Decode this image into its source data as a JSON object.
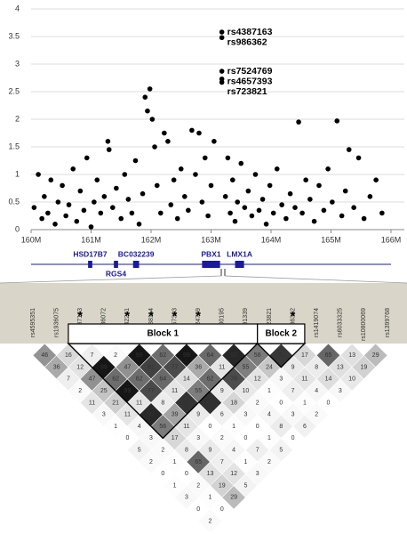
{
  "chart_data": [
    {
      "type": "scatter",
      "x": [
        160.05,
        160.12,
        160.18,
        160.22,
        160.28,
        160.33,
        160.4,
        160.45,
        160.52,
        160.58,
        160.63,
        160.7,
        160.76,
        160.82,
        160.88,
        160.93,
        161.0,
        161.05,
        161.1,
        161.16,
        161.22,
        161.28,
        161.3,
        161.36,
        161.42,
        161.5,
        161.56,
        161.62,
        161.68,
        161.74,
        161.8,
        161.86,
        161.9,
        161.94,
        161.98,
        162.02,
        162.06,
        162.1,
        162.16,
        162.22,
        162.28,
        162.33,
        162.38,
        162.44,
        162.5,
        162.56,
        162.62,
        162.68,
        162.74,
        162.8,
        162.85,
        162.9,
        162.95,
        163.0,
        163.05,
        163.18,
        163.18,
        163.18,
        163.18,
        163.18,
        163.24,
        163.28,
        163.32,
        163.36,
        163.4,
        163.44,
        163.5,
        163.56,
        163.62,
        163.68,
        163.74,
        163.8,
        163.86,
        163.92,
        163.98,
        164.04,
        164.1,
        164.18,
        164.25,
        164.32,
        164.4,
        164.46,
        164.52,
        164.58,
        164.65,
        164.72,
        164.8,
        164.88,
        164.95,
        165.02,
        165.1,
        165.18,
        165.24,
        165.3,
        165.38,
        165.46,
        165.55,
        165.65,
        165.75,
        165.85
      ],
      "y": [
        0.4,
        1.0,
        0.2,
        0.6,
        0.3,
        0.9,
        0.1,
        0.5,
        0.8,
        0.25,
        0.45,
        1.1,
        0.15,
        0.7,
        0.35,
        1.3,
        0.05,
        0.5,
        0.9,
        0.3,
        0.6,
        1.6,
        1.45,
        0.4,
        0.75,
        0.2,
        1.0,
        0.55,
        0.3,
        1.25,
        0.1,
        0.65,
        2.4,
        2.15,
        2.55,
        2.0,
        1.5,
        0.8,
        0.3,
        1.75,
        1.6,
        0.45,
        0.9,
        0.2,
        1.1,
        0.6,
        0.35,
        1.8,
        1.0,
        1.75,
        0.5,
        1.3,
        0.25,
        0.8,
        1.6,
        3.58,
        3.48,
        2.87,
        2.73,
        2.67,
        0.6,
        1.3,
        0.3,
        0.9,
        0.15,
        0.5,
        1.2,
        0.4,
        0.7,
        0.25,
        1.0,
        0.35,
        0.55,
        0.1,
        0.8,
        0.3,
        1.1,
        0.45,
        0.2,
        0.65,
        0.4,
        1.95,
        0.3,
        0.9,
        0.55,
        0.15,
        0.8,
        0.35,
        1.1,
        0.5,
        1.97,
        0.25,
        0.7,
        1.45,
        0.4,
        1.3,
        0.2,
        0.6,
        0.9,
        0.3
      ],
      "xlim": [
        160,
        166
      ],
      "ylim": [
        0,
        4
      ],
      "xticks": [
        {
          "value": 160,
          "label": "160M"
        },
        {
          "value": 161,
          "label": "161M"
        },
        {
          "value": 162,
          "label": "162M"
        },
        {
          "value": 163,
          "label": "163M"
        },
        {
          "value": 164,
          "label": "164M"
        },
        {
          "value": 165,
          "label": "165M"
        },
        {
          "value": 166,
          "label": "166M"
        }
      ],
      "yticks": [
        0,
        0.5,
        1,
        1.5,
        2,
        2.5,
        3,
        3.5,
        4
      ],
      "grid": true,
      "color": "#000000",
      "annotations": [
        {
          "text": "rs4387163",
          "x": 163.18,
          "y": 3.58
        },
        {
          "text": "rs986362",
          "x": 163.18,
          "y": 3.48
        },
        {
          "text": "rs7524769",
          "x": 163.18,
          "y": 2.87
        },
        {
          "text": "rs4657393",
          "x": 163.18,
          "y": 2.73
        },
        {
          "text": "rs723821",
          "x": 163.18,
          "y": 2.67
        }
      ]
    },
    {
      "type": "gene_track",
      "xlim": [
        160,
        166
      ],
      "color": "#1a1aa0",
      "genes": [
        {
          "name": "HSD17B7",
          "start": 160.95,
          "end": 161.02
        },
        {
          "name": "RGS4",
          "start": 161.38,
          "end": 161.45
        },
        {
          "name": "BC032239",
          "start": 161.7,
          "end": 161.8
        },
        {
          "name": "PBX1",
          "start": 162.85,
          "end": 163.15
        },
        {
          "name": "LMX1A",
          "start": 163.4,
          "end": 163.55
        }
      ]
    },
    {
      "type": "ld_heatmap",
      "snps": [
        "rs4595351",
        "rs1936075",
        "rs4387163",
        "rs1936072",
        "rs7542261",
        "rs11588114",
        "rs4657393",
        "rs7524769",
        "rs11800195",
        "rs1891339",
        "rs723821",
        "rs986362",
        "rs1419074",
        "rs6033325",
        "rs10800069",
        "rs1399768"
      ],
      "snp_marks": [
        null,
        null,
        "*",
        null,
        "*",
        "*",
        "*",
        "*",
        null,
        null,
        null,
        "*",
        null,
        null,
        null,
        null
      ],
      "values": [
        [
          46,
          36,
          7,
          2,
          11,
          3,
          1,
          0,
          5,
          2,
          0,
          1,
          3,
          0,
          2
        ],
        [
          16,
          12,
          47,
          25,
          21,
          11,
          4,
          3,
          2,
          1,
          0,
          2,
          1,
          0
        ],
        [
          7,
          99,
          62,
          99,
          11,
          92,
          56,
          17,
          8,
          65,
          13,
          19,
          29
        ],
        [
          2,
          47,
          62,
          77,
          8,
          39,
          11,
          3,
          9,
          7,
          12,
          5
        ],
        [
          99,
          81,
          64,
          11,
          87,
          9,
          0,
          2,
          4,
          1,
          3
        ],
        [
          62,
          77,
          14,
          55,
          88,
          6,
          1,
          0,
          7,
          2
        ],
        [
          99,
          36,
          62,
          9,
          18,
          3,
          0,
          1,
          5
        ],
        [
          64,
          11,
          76,
          10,
          2,
          4,
          8,
          0
        ],
        [
          92,
          55,
          12,
          1,
          0,
          3,
          6
        ],
        [
          56,
          24,
          3,
          7,
          1,
          2
        ],
        [
          85,
          9,
          11,
          4,
          0
        ],
        [
          17,
          8,
          14,
          3
        ],
        [
          65,
          13,
          10
        ],
        [
          13,
          19
        ],
        [
          29
        ]
      ],
      "blocks": [
        {
          "name": "Block 1",
          "first": 2,
          "last": 9
        },
        {
          "name": "Block 2",
          "first": 10,
          "last": 11
        }
      ]
    }
  ]
}
